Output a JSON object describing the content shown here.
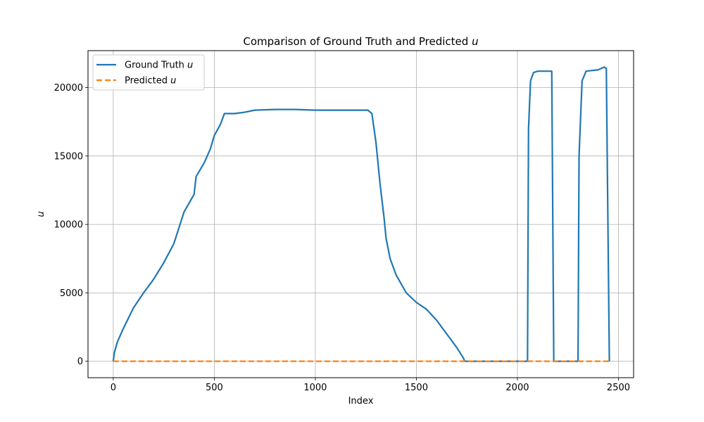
{
  "chart_data": {
    "type": "line",
    "title": "Comparison of Ground Truth and Predicted u",
    "title_text": "Comparison of Ground Truth and Predicted ",
    "title_var": "u",
    "xlabel": "Index",
    "ylabel": "u",
    "xlim": [
      -125,
      2575
    ],
    "ylim": [
      -1200,
      22700
    ],
    "xticks": [
      0,
      500,
      1000,
      1500,
      2000,
      2500
    ],
    "xtick_labels": [
      "0",
      "500",
      "1000",
      "1500",
      "2000",
      "2500"
    ],
    "yticks": [
      0,
      5000,
      10000,
      15000,
      20000
    ],
    "ytick_labels": [
      "0",
      "5000",
      "10000",
      "15000",
      "20000"
    ],
    "grid": true,
    "legend_position": "upper-left",
    "series": [
      {
        "name": "Ground Truth u",
        "label_text": "Ground Truth ",
        "label_var": "u",
        "color": "#1f77b4",
        "style": "solid",
        "points": [
          [
            0,
            0
          ],
          [
            5,
            600
          ],
          [
            20,
            1400
          ],
          [
            50,
            2400
          ],
          [
            100,
            3900
          ],
          [
            150,
            5000
          ],
          [
            200,
            6000
          ],
          [
            250,
            7200
          ],
          [
            300,
            8600
          ],
          [
            350,
            10900
          ],
          [
            400,
            12200
          ],
          [
            410,
            13500
          ],
          [
            450,
            14500
          ],
          [
            480,
            15500
          ],
          [
            500,
            16500
          ],
          [
            530,
            17300
          ],
          [
            550,
            18100
          ],
          [
            600,
            18100
          ],
          [
            650,
            18200
          ],
          [
            700,
            18350
          ],
          [
            800,
            18400
          ],
          [
            900,
            18400
          ],
          [
            1000,
            18350
          ],
          [
            1100,
            18350
          ],
          [
            1200,
            18350
          ],
          [
            1260,
            18350
          ],
          [
            1280,
            18100
          ],
          [
            1300,
            16000
          ],
          [
            1320,
            13000
          ],
          [
            1340,
            10500
          ],
          [
            1350,
            9000
          ],
          [
            1370,
            7500
          ],
          [
            1400,
            6300
          ],
          [
            1450,
            5000
          ],
          [
            1500,
            4300
          ],
          [
            1550,
            3800
          ],
          [
            1600,
            3000
          ],
          [
            1650,
            2000
          ],
          [
            1700,
            1000
          ],
          [
            1730,
            300
          ],
          [
            1740,
            0
          ],
          [
            2000,
            0
          ],
          [
            2050,
            0
          ],
          [
            2055,
            17000
          ],
          [
            2065,
            20500
          ],
          [
            2080,
            21100
          ],
          [
            2100,
            21200
          ],
          [
            2150,
            21200
          ],
          [
            2170,
            21200
          ],
          [
            2180,
            0
          ],
          [
            2300,
            0
          ],
          [
            2305,
            15000
          ],
          [
            2320,
            20500
          ],
          [
            2340,
            21200
          ],
          [
            2400,
            21300
          ],
          [
            2430,
            21500
          ],
          [
            2440,
            21400
          ],
          [
            2455,
            0
          ]
        ]
      },
      {
        "name": "Predicted u",
        "label_text": "Predicted ",
        "label_var": "u",
        "color": "#ff7f0e",
        "style": "dashed",
        "points": [
          [
            0,
            0
          ],
          [
            2455,
            0
          ]
        ]
      }
    ]
  }
}
